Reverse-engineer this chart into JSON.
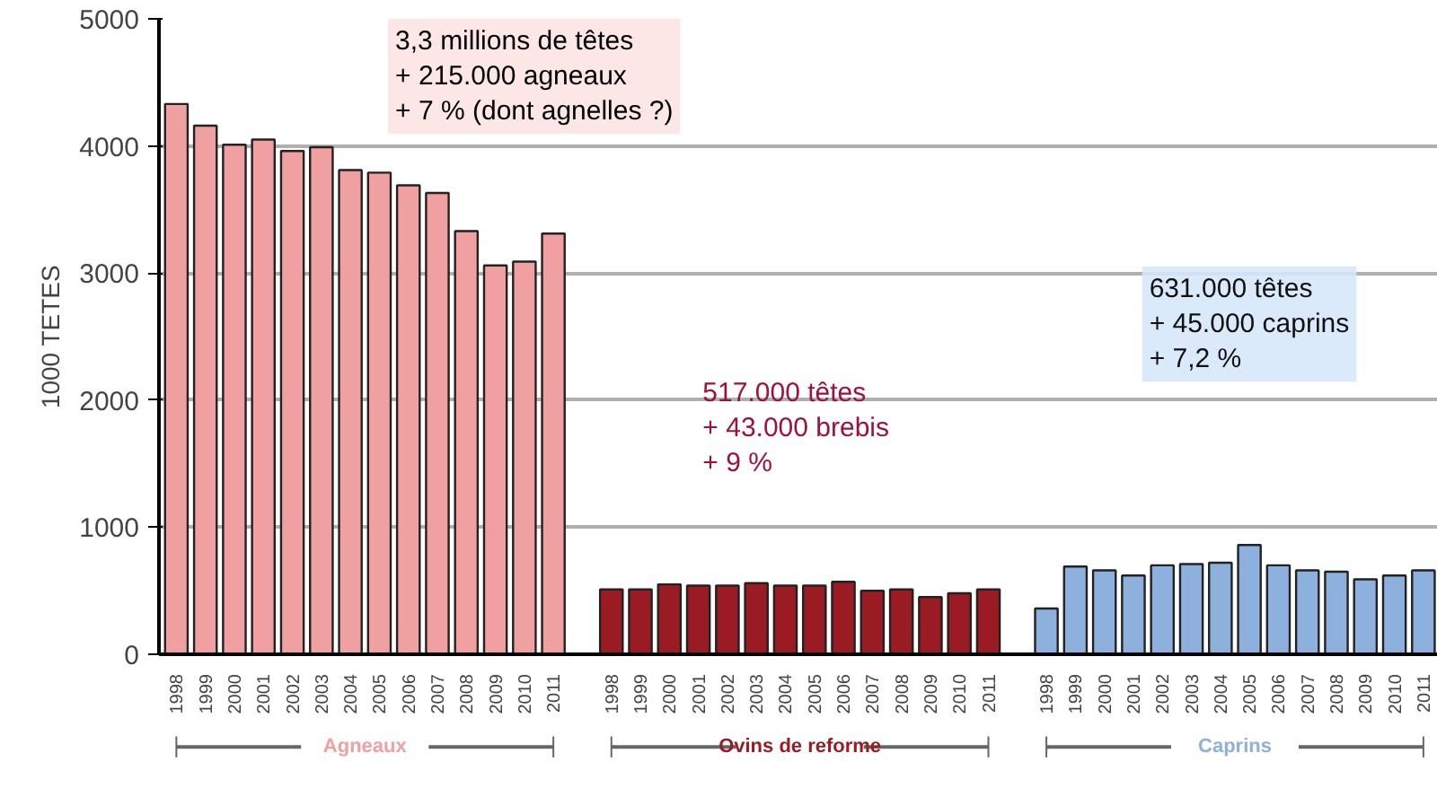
{
  "chart_data": {
    "type": "bar",
    "ylabel": "1000 TETES",
    "categories": [
      "1998",
      "1999",
      "2000",
      "2001",
      "2002",
      "2003",
      "2004",
      "2005",
      "2006",
      "2007",
      "2008",
      "2009",
      "2010",
      "2011",
      null,
      "1998",
      "1999",
      "2000",
      "2001",
      "2002",
      "2003",
      "2004",
      "2005",
      "2006",
      "2007",
      "2008",
      "2009",
      "2010",
      "2011",
      null,
      "1998",
      "1999",
      "2000",
      "2001",
      "2002",
      "2003",
      "2004",
      "2005",
      "2006",
      "2007",
      "2008",
      "2009",
      "2010",
      "2011"
    ],
    "series": [
      {
        "name": "Agneaux",
        "color": "#f0a0a0",
        "values": [
          4330,
          4160,
          4010,
          4050,
          3960,
          3990,
          3810,
          3790,
          3690,
          3630,
          3330,
          3060,
          3090,
          3310,
          null,
          null,
          null,
          null,
          null,
          null,
          null,
          null,
          null,
          null,
          null,
          null,
          null,
          null,
          null,
          null,
          null,
          null,
          null,
          null,
          null,
          null,
          null,
          null,
          null,
          null,
          null,
          null,
          null,
          null
        ]
      },
      {
        "name": "Ovins de reforme",
        "color": "#9b1b24",
        "values": [
          null,
          null,
          null,
          null,
          null,
          null,
          null,
          null,
          null,
          null,
          null,
          null,
          null,
          null,
          null,
          510,
          510,
          550,
          540,
          540,
          560,
          540,
          540,
          570,
          500,
          510,
          450,
          480,
          510,
          null,
          null,
          null,
          null,
          null,
          null,
          null,
          null,
          null,
          null,
          null,
          null,
          null,
          null,
          null
        ]
      },
      {
        "name": "Caprins",
        "color": "#8eb0dc",
        "values": [
          null,
          null,
          null,
          null,
          null,
          null,
          null,
          null,
          null,
          null,
          null,
          null,
          null,
          null,
          null,
          null,
          null,
          null,
          null,
          null,
          null,
          null,
          null,
          null,
          null,
          null,
          null,
          null,
          null,
          null,
          360,
          690,
          660,
          620,
          700,
          710,
          720,
          860,
          700,
          660,
          650,
          590,
          620,
          660
        ]
      }
    ],
    "ylim": [
      0,
      5000
    ],
    "yticks": [
      0,
      1000,
      2000,
      3000,
      4000,
      5000
    ],
    "grid": "y",
    "legend": false,
    "annotations": [
      "3,3 millions de têtes\n+ 215.000 agneaux\n+ 7 % (dont agnelles ?)",
      "517.000 têtes\n+ 43.000 brebis\n+ 9 %",
      "631.000 têtes\n+ 45.000 caprins\n+ 7,2 %"
    ]
  }
}
